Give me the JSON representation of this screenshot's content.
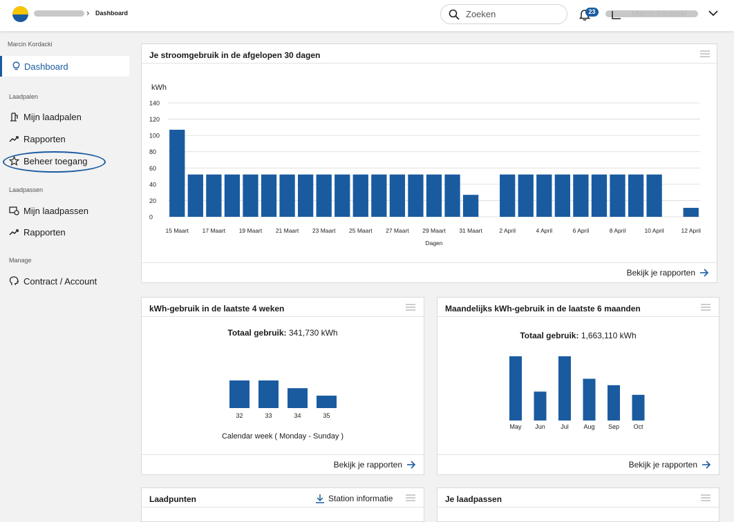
{
  "header": {
    "breadcrumb_current": "Dashboard",
    "search_placeholder": "Zoeken",
    "notification_count": "23",
    "user_name": "Marcin Kordacki"
  },
  "sidebar": {
    "user": "Marcin Kordacki",
    "dashboard": "Dashboard",
    "section_laadpalen": "Laadpalen",
    "mijn_laadpalen": "Mijn laadpalen",
    "rapporten_1": "Rapporten",
    "beheer_toegang": "Beheer toegang",
    "section_laadpassen": "Laadpassen",
    "mijn_laadpassen": "Mijn laadpassen",
    "rapporten_2": "Rapporten",
    "section_manage": "Manage",
    "contract_account": "Contract /  Account"
  },
  "colors": {
    "accent": "#1a5ba0",
    "bar": "#1a5ba0"
  },
  "panel_30days": {
    "title": "Je stroomgebruik in de afgelopen 30 dagen",
    "footer_link": "Bekijk je rapporten"
  },
  "panel_4weeks": {
    "title": "kWh-gebruik in de laatste 4 weken",
    "total_label": "Totaal gebruik:",
    "total_value": "341,730 kWh",
    "footer_link": "Bekijk je rapporten"
  },
  "panel_6months": {
    "title": "Maandelijks kWh-gebruik in de laatste 6 maanden",
    "total_label": "Totaal gebruik:",
    "total_value": "1,663,110 kWh",
    "footer_link": "Bekijk je rapporten"
  },
  "panel_laadpunten": {
    "title": "Laadpunten",
    "station_link": "Station informatie"
  },
  "panel_laadpassen": {
    "title": "Je laadpassen"
  },
  "chart_data": [
    {
      "type": "bar",
      "title": "Je stroomgebruik in de afgelopen 30 dagen",
      "ylabel": "kWh",
      "xlabel": "Dagen",
      "ylim": [
        0,
        140
      ],
      "yticks": [
        0,
        20,
        40,
        60,
        80,
        100,
        120,
        140
      ],
      "grid": true,
      "categories": [
        "15 Maart",
        "16 Maart",
        "17 Maart",
        "18 Maart",
        "19 Maart",
        "20 Maart",
        "21 Maart",
        "22 Maart",
        "23 Maart",
        "24 Maart",
        "25 Maart",
        "26 Maart",
        "27 Maart",
        "28 Maart",
        "29 Maart",
        "30 Maart",
        "31 Maart",
        "1 April",
        "2 April",
        "3 April",
        "4 April",
        "5 April",
        "6 April",
        "7 April",
        "8 April",
        "9 April",
        "10 April",
        "11 April",
        "12 April"
      ],
      "tick_labels": [
        "15 Maart",
        "",
        "17 Maart",
        "",
        "19 Maart",
        "",
        "21 Maart",
        "",
        "23 Maart",
        "",
        "25 Maart",
        "",
        "27 Maart",
        "",
        "29 Maart",
        "",
        "31 Maart",
        "",
        "2 April",
        "",
        "4 April",
        "",
        "6 April",
        "",
        "8 April",
        "",
        "10 April",
        "",
        "12 April"
      ],
      "values": [
        107,
        52,
        52,
        52,
        52,
        52,
        52,
        52,
        52,
        52,
        52,
        52,
        52,
        52,
        52,
        52,
        27,
        0,
        52,
        52,
        52,
        52,
        52,
        52,
        52,
        52,
        52,
        0,
        11
      ]
    },
    {
      "type": "bar",
      "title": "kWh-gebruik in de laatste 4 weken",
      "xlabel": "Calendar week ( Monday - Sunday )",
      "categories": [
        "32",
        "33",
        "34",
        "35"
      ],
      "values": [
        100,
        100,
        72,
        45
      ]
    },
    {
      "type": "bar",
      "title": "Maandelijks kWh-gebruik in de laatste 6 maanden",
      "categories": [
        "May",
        "Jun",
        "Jul",
        "Aug",
        "Sep",
        "Oct"
      ],
      "values": [
        100,
        45,
        100,
        65,
        55,
        40
      ]
    }
  ]
}
